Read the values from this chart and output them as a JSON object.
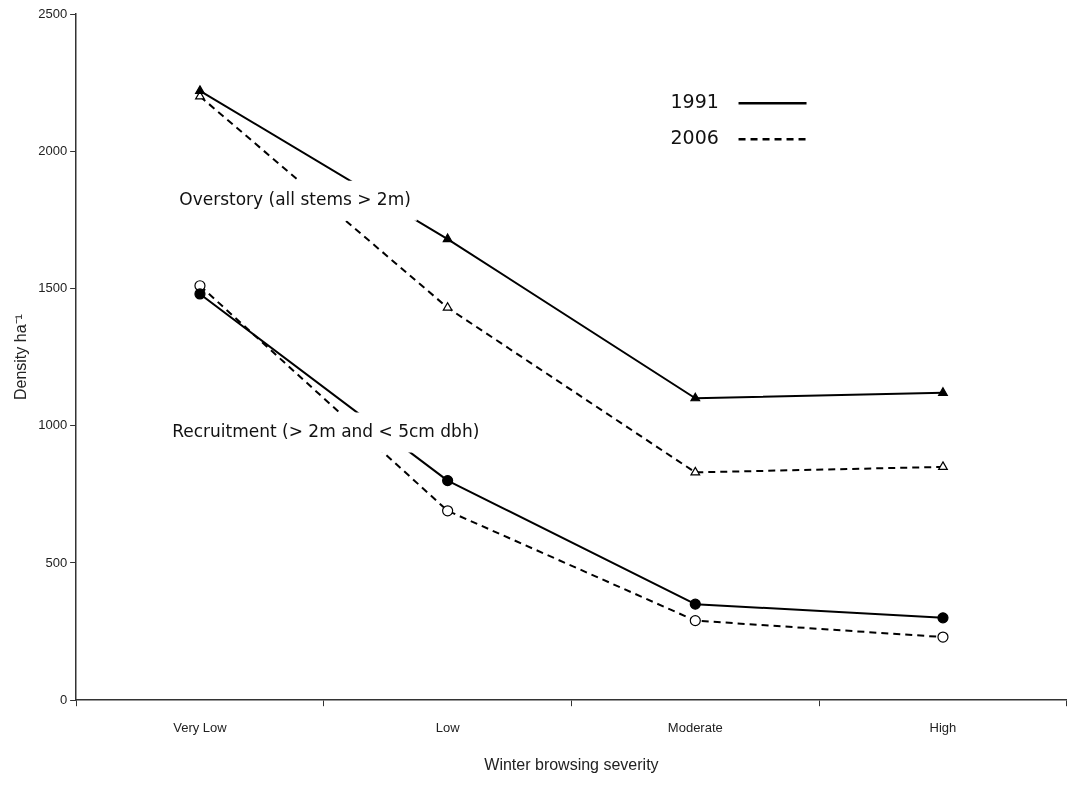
{
  "chart_data": {
    "type": "line",
    "xlabel": "Winter browsing severity",
    "ylabel": "Density ha⁻¹",
    "categories": [
      "Very Low",
      "Low",
      "Moderate",
      "High"
    ],
    "series": [
      {
        "name": "1991",
        "color": "#000000",
        "marker": "triangle",
        "line_style": "solid",
        "values": [
          2220,
          1680,
          1100,
          1120
        ]
      },
      {
        "name": "2006",
        "color": "#000000",
        "marker": "triangle",
        "line_style": "dashed",
        "values": [
          2200,
          1430,
          830,
          850
        ]
      },
      {
        "color": "#000000",
        "marker": "circle",
        "line_style": "solid",
        "values": [
          1480,
          800,
          350,
          300
        ]
      },
      {
        "color": "#000000",
        "marker": "circle",
        "line_style": "dashed",
        "values": [
          1510,
          690,
          290,
          230
        ]
      }
    ],
    "ylim": [
      0,
      2500
    ],
    "yticks": [
      0,
      500,
      1000,
      1500,
      2000,
      2500
    ],
    "grid": false,
    "legend": "top right",
    "annotations": [
      "Overstory (all stems > 2m)",
      "Recruitment (> 2m and < 5cm dbh)"
    ]
  }
}
